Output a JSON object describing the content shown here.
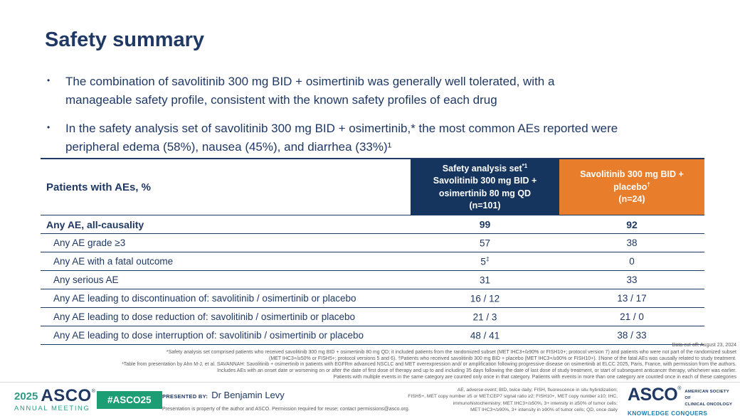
{
  "colors": {
    "navy": "#1F3864",
    "header_navy": "#16355E",
    "header_orange": "#E87D2B",
    "meeting_green": "#2F9B84",
    "badge_green": "#1D9D74",
    "tagline_blue": "#1B7EB0",
    "footnote_gray": "#595959"
  },
  "title": "Safety summary",
  "bullets": [
    {
      "marker": "•",
      "lines": [
        "The combination of savolitinib 300 mg BID + osimertinib was generally well tolerated, with a",
        "manageable safety profile, consistent with the known safety profiles of each drug"
      ]
    },
    {
      "marker": "•",
      "lines": [
        "In the safety analysis set of savolitinib 300 mg BID + osimertinib,* the most common AEs reported were",
        "peripheral edema (58%), nausea (45%), and diarrhea (33%)¹"
      ]
    }
  ],
  "table": {
    "corner_header": "Patients with AEs, %",
    "col2": {
      "line1": "Safety analysis set",
      "sup": "*1",
      "line2": "Savolitinib 300 mg BID +",
      "line3": "osimertinib 80 mg QD",
      "line4": "(n=101)"
    },
    "col3": {
      "line1": "Savolitinib 300 mg BID +",
      "line2": "placebo",
      "sup": "†",
      "line3": "(n=24)"
    },
    "rows": [
      {
        "label": "Any AE, all-causality",
        "v1": "99",
        "v2": "92"
      },
      {
        "label": "Any AE grade ≥3",
        "v1": "57",
        "v2": "38"
      },
      {
        "label": "Any AE with a fatal outcome",
        "v1": "5",
        "v1_sup": "‡",
        "v2": "0"
      },
      {
        "label": "Any serious AE",
        "v1": "31",
        "v2": "33"
      },
      {
        "label": "Any AE leading to discontinuation of: savolitinib / osimertinib or placebo",
        "v1": "16 / 12",
        "v2": "13 / 17"
      },
      {
        "label": "Any AE leading to dose reduction of: savolitinib / osimertinib or placebo",
        "v1": "21 / 3",
        "v2": "21 / 0"
      },
      {
        "label": "Any AE leading to dose interruption of: savolitinib / osimertinib or placebo",
        "v1": "48 / 41",
        "v2": "38 / 33"
      }
    ]
  },
  "footnotes": [
    "Data cut-off: August 23, 2024",
    "*Safety analysis set comprised patients who received savolitinib 300 mg BID + osimertinib 80 mg QD; it included patients from the randomized subset (MET IHC3+/≥90% or FISH10+; protocol version 7) and patients who were not part of the randomized subset",
    "(MET IHC3+/≥50% or FISH5+; protocol versions 5 and 6). †Patients who received savolitinib 300 mg BID + placebo (MET IHC3+/≥90% or FISH10+). ‡None of the fatal AEs was causally related to study treatment.",
    "¹Table from presentation by Ahn M-J, et al. SAVANNAH: Savolitinib + osimertinib in patients with EGFRm advanced NSCLC and MET overexpression and/ or amplification following progressive disease on osimertinib at ELCC 2025, Paris, France, with permission from the authors.",
    "Includes AEs with an onset date or worsening on or after the date of first dose of therapy and up to and including 35 days following the date of last dose of study treatment, or start of subsequent anticancer therapy, whichever was earlier.",
    "Patients with multiple events in the same category are counted only once in that category. Patients with events in more than one category are counted once in each of these categories"
  ],
  "footer": {
    "meeting_logo": {
      "year": "2025",
      "name": "ASCO",
      "registered": "®",
      "subtitle": "ANNUAL MEETING"
    },
    "hashtag": "#ASCO25",
    "presented_by_label": "PRESENTED BY:",
    "presenter": "Dr Benjamin Levy",
    "permission_note": "Presentation is property of the author and ASCO. Permission required for reuse; contact permissions@asco.org.",
    "abbreviations": [
      "AE, adverse event; BID, twice daily; FISH, fluorescence in situ hybridization;",
      "FISH5+, MET copy number ≥5 or MET:CEP7 signal ratio ≥2; FISH10+, MET copy number ≥10; IHC,",
      "immunohistochemistry; MET IHC3+/≥50%, 3+ intensity in ≥50% of tumor cells;",
      "MET IHC3+/≥90%, 3+ intensity in ≥90% of tumor cells; QD, once daily"
    ],
    "asco_logo": {
      "name": "ASCO",
      "registered": "®",
      "society_line1": "AMERICAN SOCIETY OF",
      "society_line2": "CLINICAL ONCOLOGY",
      "tagline": "KNOWLEDGE CONQUERS CANCER"
    }
  }
}
